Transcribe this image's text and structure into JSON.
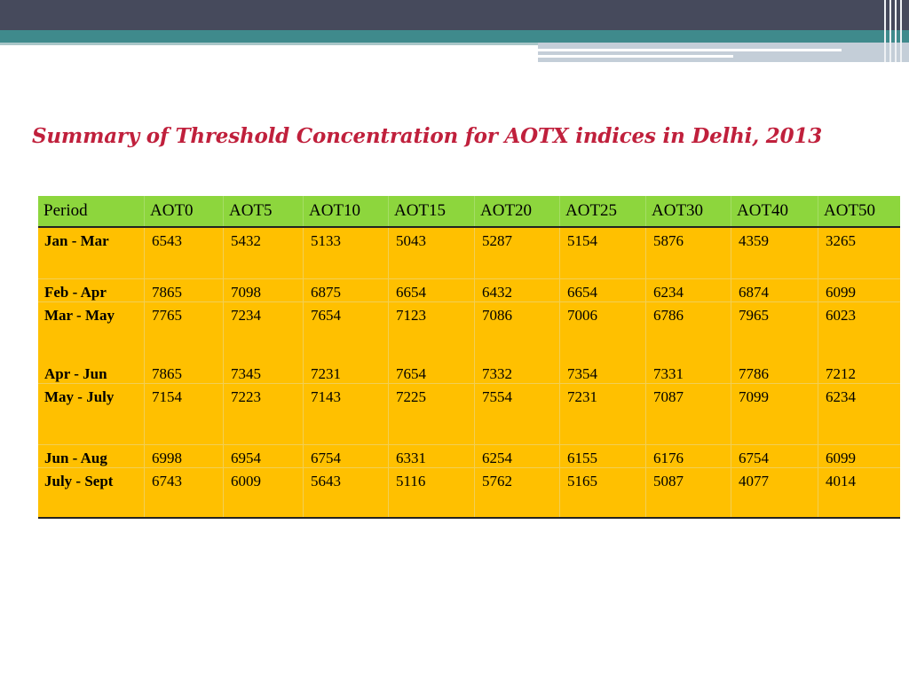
{
  "slide": {
    "title": "Summary of Threshold Concentration for AOTX indices in Delhi, 2013",
    "colors": {
      "header_band": "#464a5c",
      "accent_band": "#3f8a8c",
      "title": "#c0203c",
      "table_header": "#8dd63d",
      "table_body": "#ffc000"
    }
  },
  "table": {
    "headers": [
      "Period",
      "AOT0",
      "AOT5",
      "AOT10",
      "AOT15",
      "AOT20",
      "AOT25",
      "AOT30",
      "AOT40",
      "AOT50"
    ],
    "rows": [
      [
        "Jan - Mar",
        "6543",
        "5432",
        "5133",
        "5043",
        "5287",
        "5154",
        "5876",
        "4359",
        "3265"
      ],
      [
        "Feb - Apr",
        "7865",
        "7098",
        "6875",
        "6654",
        "6432",
        "6654",
        "6234",
        "6874",
        "6099"
      ],
      [
        "Mar - May",
        "7765",
        "7234",
        "7654",
        "7123",
        "7086",
        "7006",
        "6786",
        "7965",
        "6023"
      ],
      [
        "Apr - Jun",
        "7865",
        "7345",
        "7231",
        "7654",
        "7332",
        "7354",
        "7331",
        "7786",
        "7212"
      ],
      [
        "May - July",
        "7154",
        "7223",
        "7143",
        "7225",
        "7554",
        "7231",
        "7087",
        "7099",
        "6234"
      ],
      [
        "Jun - Aug",
        "6998",
        "6954",
        "6754",
        "6331",
        "6254",
        "6155",
        "6176",
        "6754",
        "6099"
      ],
      [
        "July - Sept",
        "6743",
        "6009",
        "5643",
        "5116",
        "5762",
        "5165",
        "5087",
        "4077",
        "4014"
      ]
    ]
  }
}
